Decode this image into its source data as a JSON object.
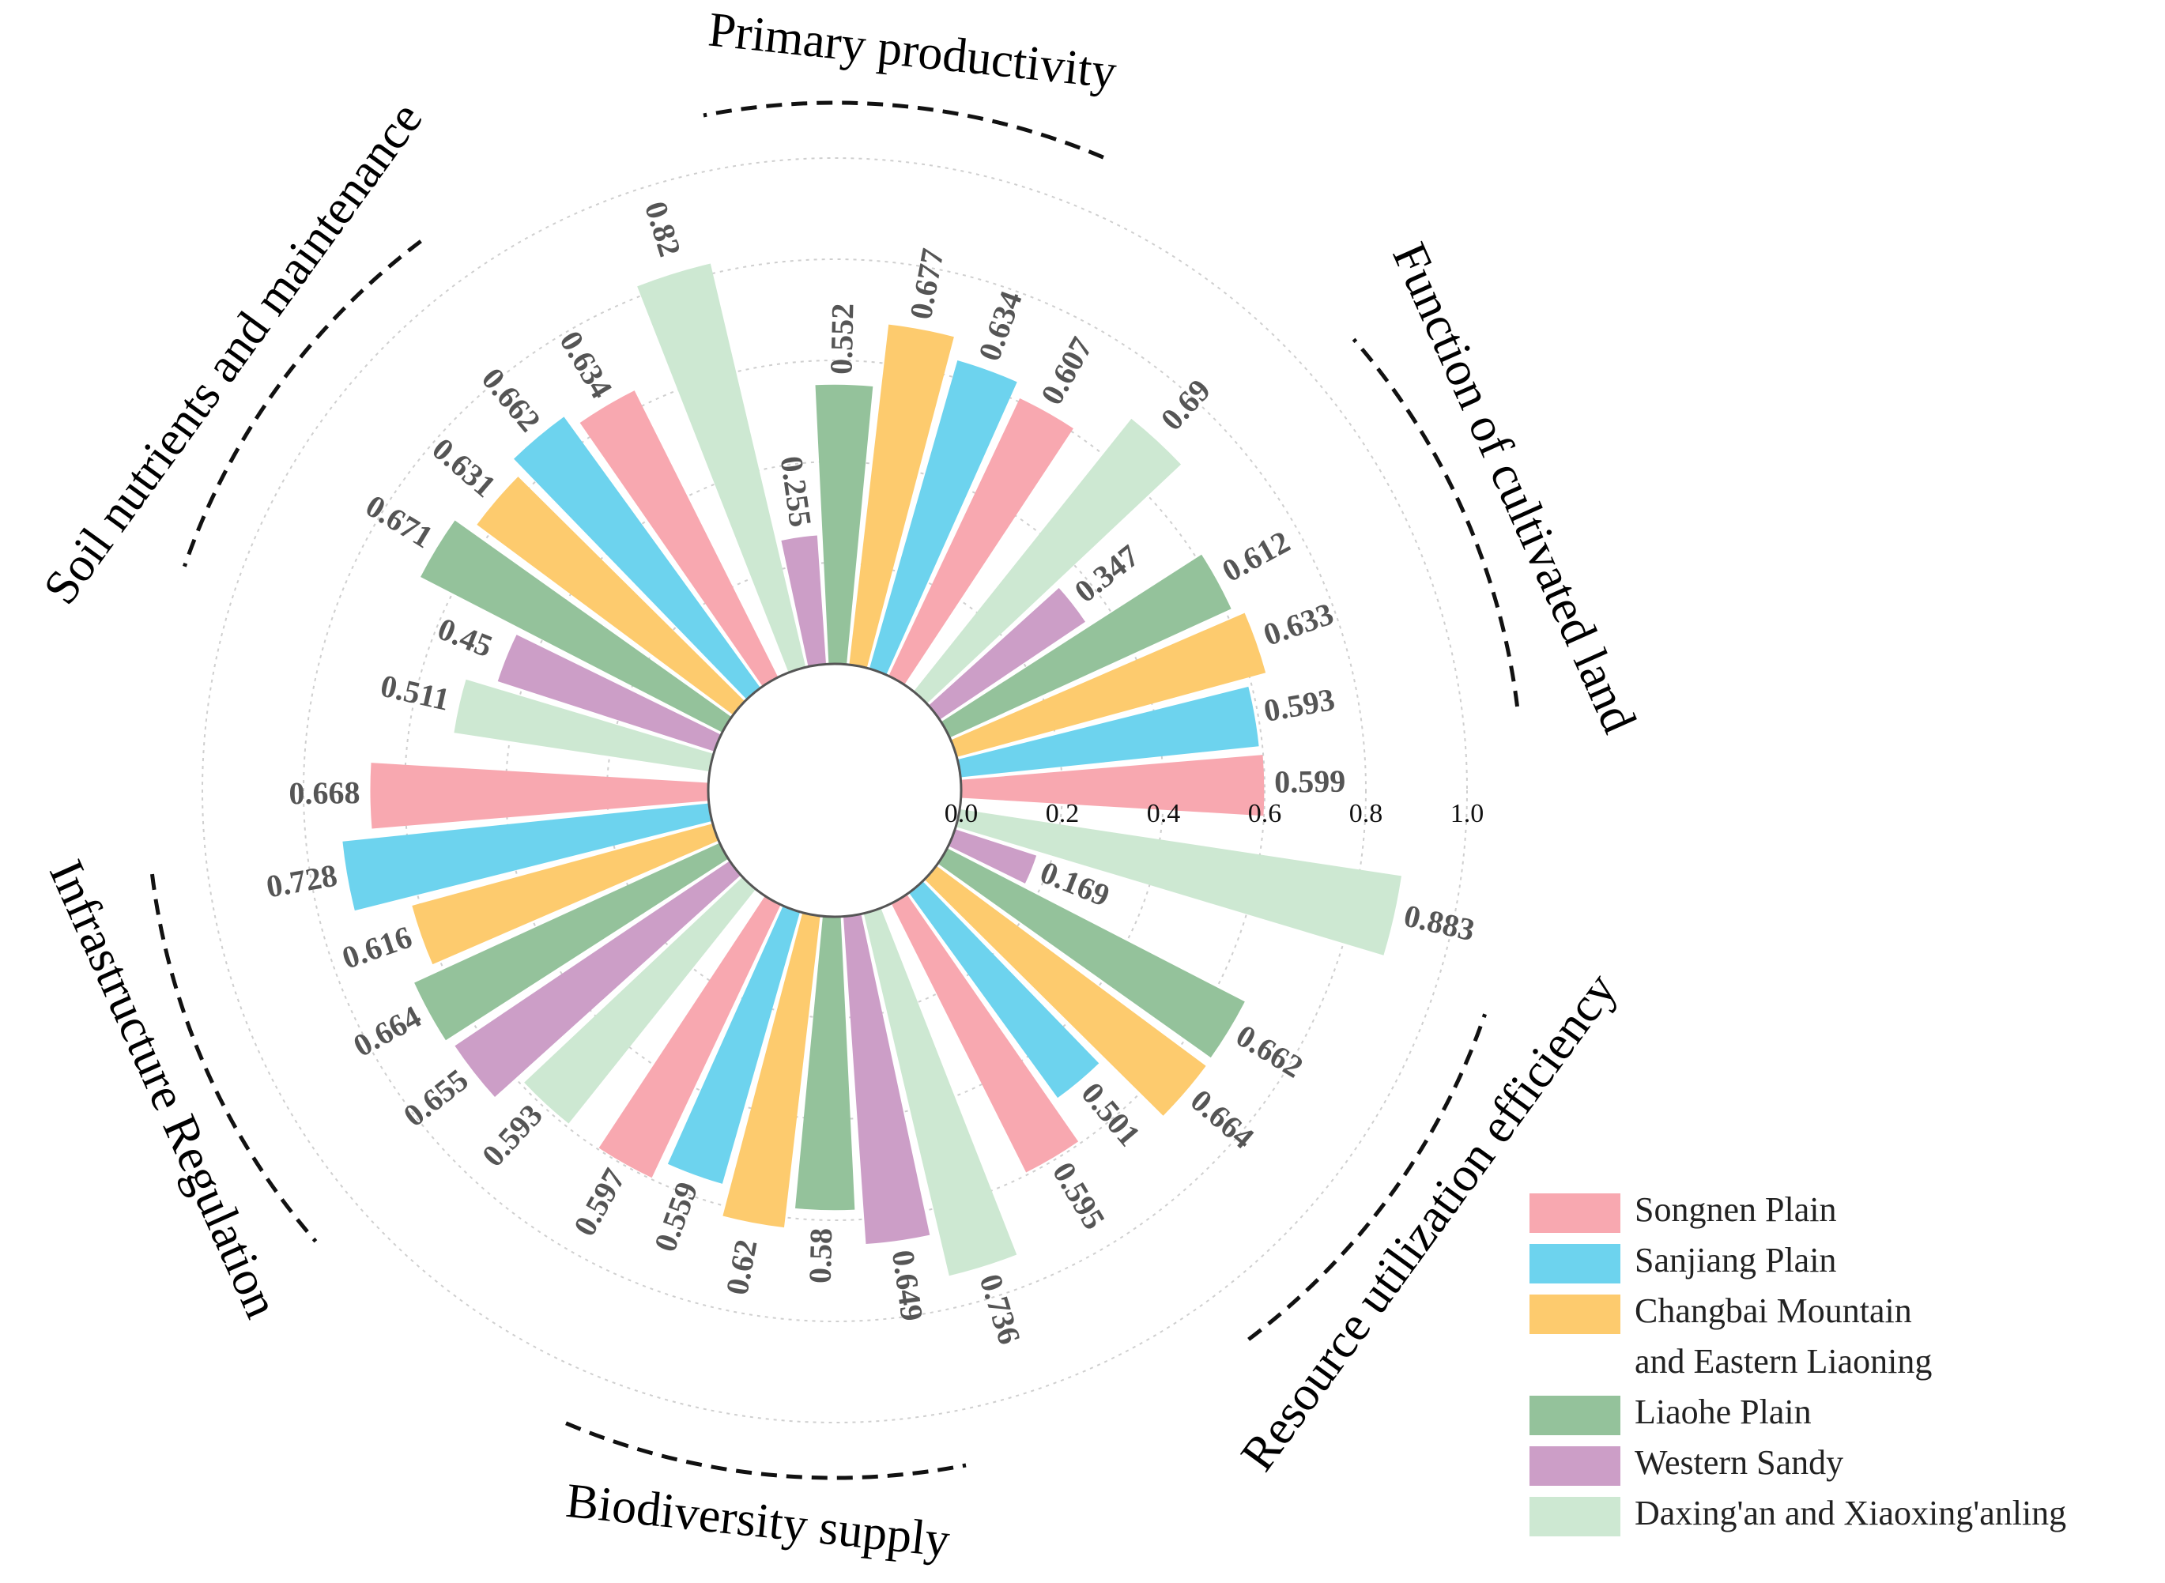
{
  "chart_data": {
    "type": "polar-bar",
    "title": "",
    "rmax": 1.0,
    "radial_ticks": [
      "0.0",
      "0.2",
      "0.4",
      "0.6",
      "0.8",
      "1.0"
    ],
    "radial_tick_values": [
      0,
      0.2,
      0.4,
      0.6,
      0.8,
      1.0
    ],
    "series": [
      {
        "name": "Songnen Plain",
        "color": "#F8A8B0"
      },
      {
        "name": "Sanjiang Plain",
        "color": "#6DD3EE"
      },
      {
        "name": "Changbai Mountain\nand Eastern Liaoning",
        "legend_lines": [
          "Changbai Mountain",
          "and Eastern Liaoning"
        ],
        "color": "#FDCB6E"
      },
      {
        "name": "Liaohe Plain",
        "color": "#94C29B"
      },
      {
        "name": "Western Sandy",
        "color": "#CC9EC7"
      },
      {
        "name": "Daxing'an and Xiaoxing'anling",
        "color": "#CDE8D2"
      }
    ],
    "groups": [
      {
        "name": "Function of cultivated land",
        "values": [
          0.599,
          0.593,
          0.633,
          0.612,
          0.347,
          0.69
        ],
        "labels": [
          "0.599",
          "0.593",
          "0.633",
          "0.612",
          "0.347",
          "0.69"
        ]
      },
      {
        "name": "Primary productivity",
        "values": [
          0.607,
          0.634,
          0.677,
          0.552,
          0.255,
          0.82
        ],
        "labels": [
          "0.607",
          "0.634",
          "0.677",
          "0.552",
          "0.255",
          "0.82"
        ]
      },
      {
        "name": "Soil nutrients and maintenance",
        "values": [
          0.634,
          0.662,
          0.631,
          0.671,
          0.45,
          0.511
        ],
        "labels": [
          "0.634",
          "0.662",
          "0.631",
          "0.671",
          "0.45",
          "0.511"
        ]
      },
      {
        "name": "Infrastructure Regulation",
        "values": [
          0.668,
          0.728,
          0.616,
          0.664,
          0.655,
          0.593
        ],
        "labels": [
          "0.668",
          "0.728",
          "0.616",
          "0.664",
          "0.655",
          "0.593"
        ]
      },
      {
        "name": "Biodiversity supply",
        "values": [
          0.597,
          0.559,
          0.62,
          0.58,
          0.649,
          0.736
        ],
        "labels": [
          "0.597",
          "0.559",
          "0.62",
          "0.58",
          "0.649",
          "0.736"
        ]
      },
      {
        "name": "Resource utilization efficiency",
        "values": [
          0.595,
          0.501,
          0.664,
          0.662,
          0.169,
          0.883
        ],
        "labels": [
          "0.595",
          "0.501",
          "0.664",
          "0.662",
          "0.169",
          "0.883"
        ]
      }
    ]
  }
}
